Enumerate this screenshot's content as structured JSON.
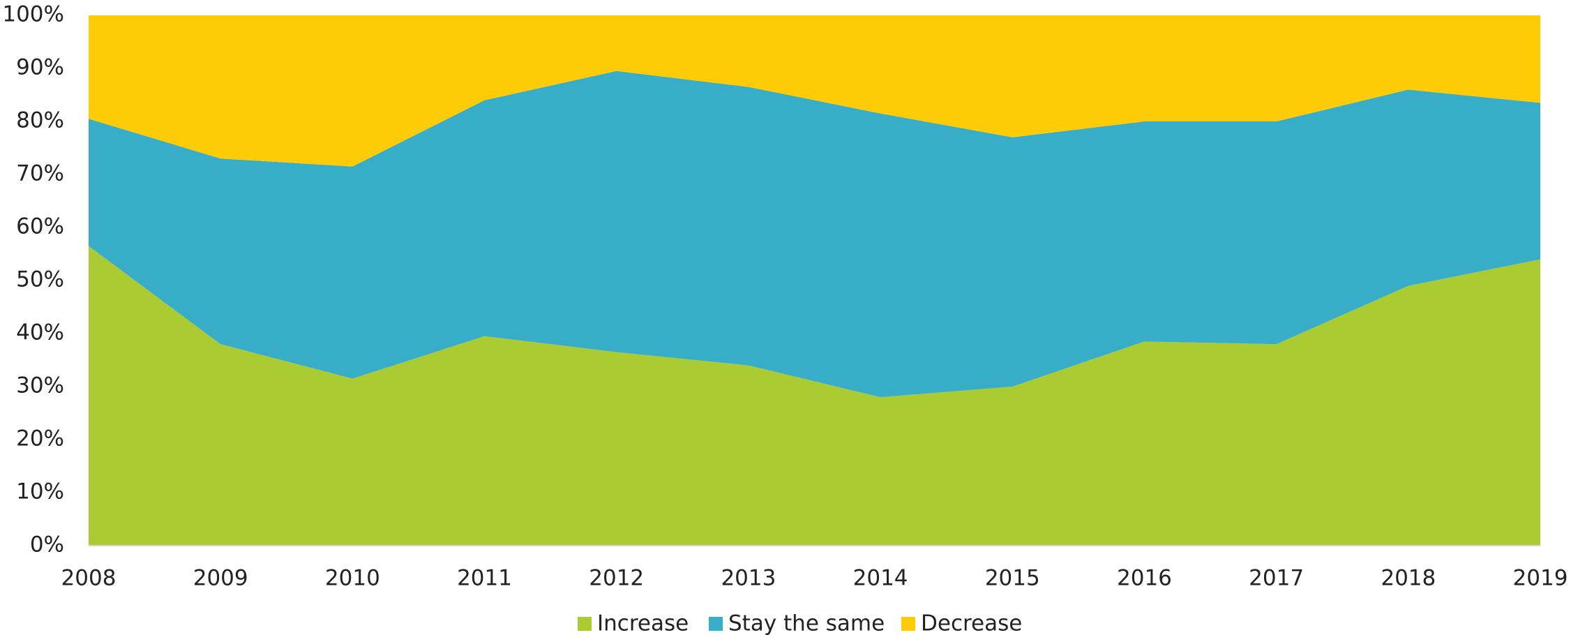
{
  "chart_data": {
    "type": "stacked_area",
    "x": [
      2008,
      2009,
      2010,
      2011,
      2012,
      2013,
      2014,
      2015,
      2016,
      2017,
      2018,
      2019
    ],
    "xlim": [
      2008,
      2019
    ],
    "xticks": [
      2008,
      2009,
      2010,
      2011,
      2012,
      2013,
      2014,
      2015,
      2016,
      2017,
      2018,
      2019
    ],
    "ylim": [
      0,
      100
    ],
    "yticks": [
      {
        "value": 0,
        "label": "0%"
      },
      {
        "value": 10,
        "label": "10%"
      },
      {
        "value": 20,
        "label": "20%"
      },
      {
        "value": 30,
        "label": "30%"
      },
      {
        "value": 40,
        "label": "40%"
      },
      {
        "value": 50,
        "label": "50%"
      },
      {
        "value": 60,
        "label": "60%"
      },
      {
        "value": 70,
        "label": "70%"
      },
      {
        "value": 80,
        "label": "80%"
      },
      {
        "value": 90,
        "label": "90%"
      },
      {
        "value": 100,
        "label": "100%"
      }
    ],
    "legend": "bottom",
    "series": [
      {
        "name": "Increase",
        "color": "#abcb33",
        "values": [
          56.5,
          38,
          31.5,
          39.5,
          36.5,
          34,
          28,
          30,
          38.5,
          38,
          49,
          54
        ]
      },
      {
        "name": "Stay the same",
        "color": "#37adc8",
        "values": [
          24,
          35,
          40,
          44.5,
          53,
          52.5,
          53.5,
          47,
          41.5,
          42,
          37,
          29.5
        ]
      },
      {
        "name": "Decrease",
        "color": "#fecc07",
        "values": [
          19.5,
          27,
          28.5,
          16,
          10.5,
          13.5,
          18.5,
          23,
          20,
          20,
          14,
          16.5
        ]
      }
    ]
  }
}
